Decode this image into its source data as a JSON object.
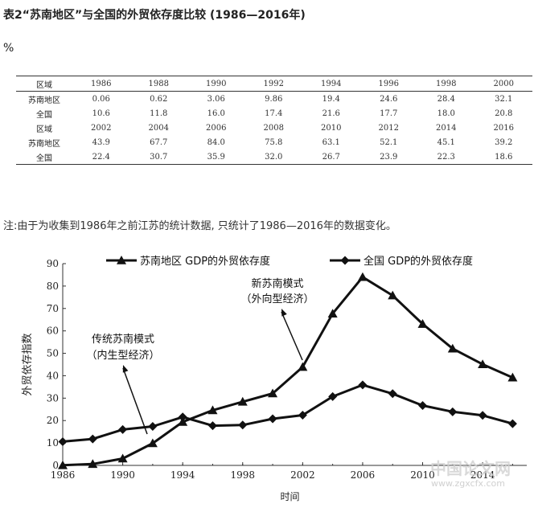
{
  "title": "表2“苏南地区”与全国的外贸依存度比较 (1986—2016年)",
  "unit": "%",
  "table": {
    "rows": [
      [
        "区域",
        "1986",
        "1988",
        "1990",
        "1992",
        "1994",
        "1996",
        "1998",
        "2000"
      ],
      [
        "苏南地区",
        "0.06",
        "0.62",
        "3.06",
        "9.86",
        "19.4",
        "24.6",
        "28.4",
        "32.1"
      ],
      [
        "全国",
        "10.6",
        "11.8",
        "16.0",
        "17.4",
        "21.6",
        "17.7",
        "18.0",
        "20.8"
      ],
      [
        "区域",
        "2002",
        "2004",
        "2006",
        "2008",
        "2010",
        "2012",
        "2014",
        "2016"
      ],
      [
        "苏南地区",
        "43.9",
        "67.7",
        "84.0",
        "75.8",
        "63.1",
        "52.1",
        "45.1",
        "39.2"
      ],
      [
        "全国",
        "22.4",
        "30.7",
        "35.9",
        "32.0",
        "26.7",
        "23.9",
        "22.3",
        "18.6"
      ]
    ]
  },
  "note": "注:由于为收集到1986年之前江苏的统计数据, 只统计了1986—2016年的数据变化。",
  "chart_data": {
    "type": "line",
    "x": [
      1986,
      1988,
      1990,
      1992,
      1994,
      1996,
      1998,
      2000,
      2002,
      2004,
      2006,
      2008,
      2010,
      2012,
      2014,
      2016
    ],
    "xticks": [
      "1986",
      "1990",
      "1994",
      "1998",
      "2002",
      "2006",
      "2010",
      "2014"
    ],
    "yticks": [
      "0",
      "10",
      "20",
      "30",
      "40",
      "50",
      "60",
      "70",
      "80",
      "90"
    ],
    "xlim": [
      1986,
      2016.3
    ],
    "ylim": [
      0,
      90
    ],
    "xlabel": "时间",
    "ylabel": "外贸依存指数",
    "legend_position": "top",
    "series": [
      {
        "name": "苏南地区 GDP的外贸依存度",
        "marker": "triangle",
        "values": [
          0.06,
          0.62,
          3.06,
          9.86,
          19.4,
          24.6,
          28.4,
          32.1,
          43.9,
          67.7,
          84.0,
          75.8,
          63.1,
          52.1,
          45.1,
          39.2
        ]
      },
      {
        "name": "全国 GDP的外贸依存度",
        "marker": "diamond",
        "values": [
          10.6,
          11.8,
          16.0,
          17.4,
          21.6,
          17.7,
          18.0,
          20.8,
          22.4,
          30.7,
          35.9,
          32.0,
          26.7,
          23.9,
          22.3,
          18.6
        ]
      }
    ],
    "annotations": [
      {
        "line1": "新苏南模式",
        "line2": "（外向型经济）"
      },
      {
        "line1": "传统苏南模式",
        "line2": "（内生型经济）"
      }
    ],
    "line_color": "#111111"
  },
  "watermark": {
    "line1": "中国论文网",
    "line2": "www.zgxcfx.com"
  }
}
